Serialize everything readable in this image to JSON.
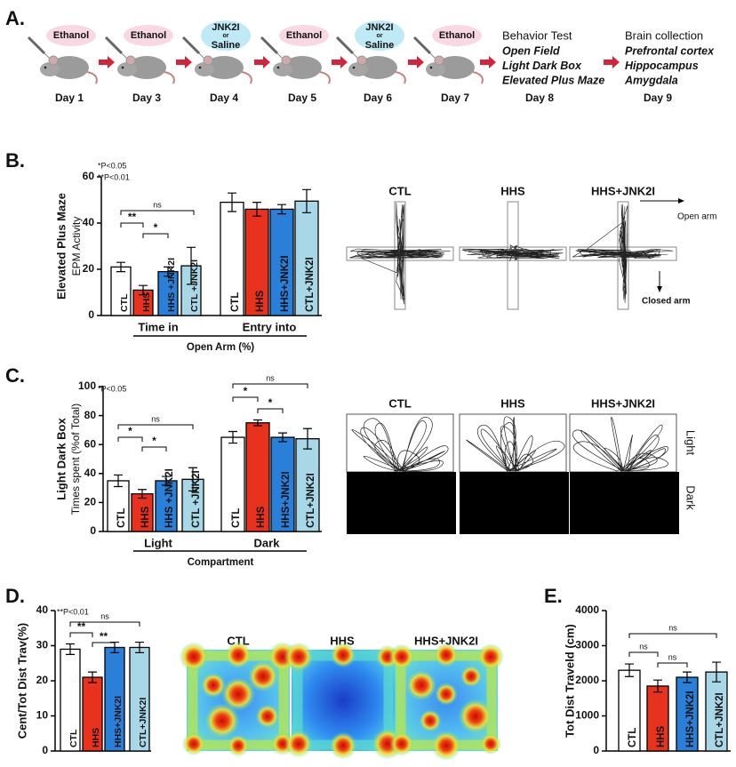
{
  "panels": [
    "A.",
    "B.",
    "C.",
    "D.",
    "E."
  ],
  "timeline": {
    "steps": [
      {
        "treatment": [
          "Ethanol"
        ],
        "day": "Day 1"
      },
      {
        "treatment": [
          "Ethanol"
        ],
        "day": "Day 3"
      },
      {
        "treatment": [
          "JNK2I",
          "or",
          "Saline"
        ],
        "day": "Day 4"
      },
      {
        "treatment": [
          "Ethanol"
        ],
        "day": "Day 5"
      },
      {
        "treatment": [
          "JNK2I",
          "or",
          "Saline"
        ],
        "day": "Day 6"
      },
      {
        "treatment": [
          "Ethanol"
        ],
        "day": "Day 7"
      }
    ],
    "stages": [
      {
        "title": "Behavior Test",
        "items": [
          "Open Field",
          "Light Dark Box",
          "Elevated Plus Maze"
        ],
        "day": "Day 8"
      },
      {
        "title": "Brain collection",
        "items": [
          "Prefrontal cortex",
          "Hippocampus",
          "Amygdala"
        ],
        "day": "Day 9"
      }
    ]
  },
  "chart_data": [
    {
      "type": "bar",
      "ylabel": [
        "Elevated Plus Maze",
        "EPM Activity"
      ],
      "annotations": [
        "*P<0.05",
        "**P<0.01"
      ],
      "colors": [
        "#ffffff",
        "#e8321e",
        "#2a7fd9",
        "#a8d8e8"
      ],
      "groups": [
        {
          "label": "Time in",
          "categories": [
            "CTL",
            "HHS",
            "HHS +JNK2I",
            "CTL +JNK2I"
          ],
          "values": [
            21,
            11,
            19,
            21.5
          ],
          "errors": [
            2,
            2,
            2,
            8
          ]
        },
        {
          "label": "Entry into",
          "categories": [
            "CTL",
            "HHS",
            "HHS+JNK2I",
            "CTL+JNK2I"
          ],
          "values": [
            49,
            46,
            46,
            49.5
          ],
          "errors": [
            4,
            3,
            2,
            5
          ]
        }
      ],
      "group_axis_label": "Open Arm (%)",
      "ylim": [
        0,
        60
      ],
      "yticks": [
        0,
        20,
        40,
        60
      ],
      "brackets": [
        "ns",
        "**",
        "*"
      ]
    },
    {
      "type": "bar",
      "ylabel": [
        "Light Dark Box",
        "Times spent (%of Total)"
      ],
      "annotations": [
        "*P<0.05"
      ],
      "colors": [
        "#ffffff",
        "#e8321e",
        "#2a7fd9",
        "#a8d8e8"
      ],
      "groups": [
        {
          "label": "Light",
          "categories": [
            "CTL",
            "HHS",
            "HHS +JNK2I",
            "CTL +JNK2I"
          ],
          "values": [
            35,
            26,
            35,
            36
          ],
          "errors": [
            4,
            3,
            3,
            8
          ]
        },
        {
          "label": "Dark",
          "categories": [
            "CTL",
            "HHS",
            "HHS+JNK2I",
            "CTL+JNK2I"
          ],
          "values": [
            65,
            75,
            65,
            64
          ],
          "errors": [
            4,
            2,
            3,
            7
          ]
        }
      ],
      "group_axis_label": "Compartment",
      "ylim": [
        0,
        100
      ],
      "yticks": [
        0,
        20,
        40,
        60,
        80,
        100
      ],
      "brackets": [
        "ns",
        "*",
        "*",
        "ns",
        "*",
        "*"
      ]
    },
    {
      "type": "bar",
      "ylabel": [
        "Cent/Tot Dist Trav(%)"
      ],
      "annotations": [
        "**P<0.01"
      ],
      "colors": [
        "#ffffff",
        "#e8321e",
        "#2a7fd9",
        "#a8d8e8"
      ],
      "groups": [
        {
          "categories": [
            "CTL",
            "HHS",
            "HHS+JNK2I",
            "CTL+JNK2I"
          ],
          "values": [
            29,
            21,
            29.5,
            29.5
          ],
          "errors": [
            1.5,
            1.5,
            1.5,
            1.5
          ]
        }
      ],
      "ylim": [
        0,
        40
      ],
      "yticks": [
        0,
        10,
        20,
        30,
        40
      ],
      "brackets": [
        "ns",
        "**",
        "**"
      ]
    },
    {
      "type": "bar",
      "ylabel": [
        "Tot Dist Traveld (cm)"
      ],
      "colors": [
        "#ffffff",
        "#e8321e",
        "#2a7fd9",
        "#a8d8e8"
      ],
      "groups": [
        {
          "categories": [
            "CTL",
            "HHS",
            "HHS+JNK2I",
            "CTL+JNK2I"
          ],
          "values": [
            2300,
            1850,
            2100,
            2250
          ],
          "errors": [
            180,
            170,
            150,
            280
          ]
        }
      ],
      "ylim": [
        0,
        4000
      ],
      "yticks": [
        0,
        1000,
        2000,
        3000,
        4000
      ],
      "brackets": [
        "ns",
        "ns",
        "ns"
      ]
    }
  ],
  "images": [
    {
      "labels": [
        "CTL",
        "HHS",
        "HHS+JNK2I"
      ],
      "notes": [
        "Open arm",
        "Closed arm"
      ]
    },
    {
      "labels": [
        "CTL",
        "HHS",
        "HHS+JNK2I"
      ],
      "notes": [
        "Light",
        "Dark"
      ]
    },
    {
      "labels": [
        "CTL",
        "HHS",
        "HHS+JNK2I"
      ]
    }
  ]
}
